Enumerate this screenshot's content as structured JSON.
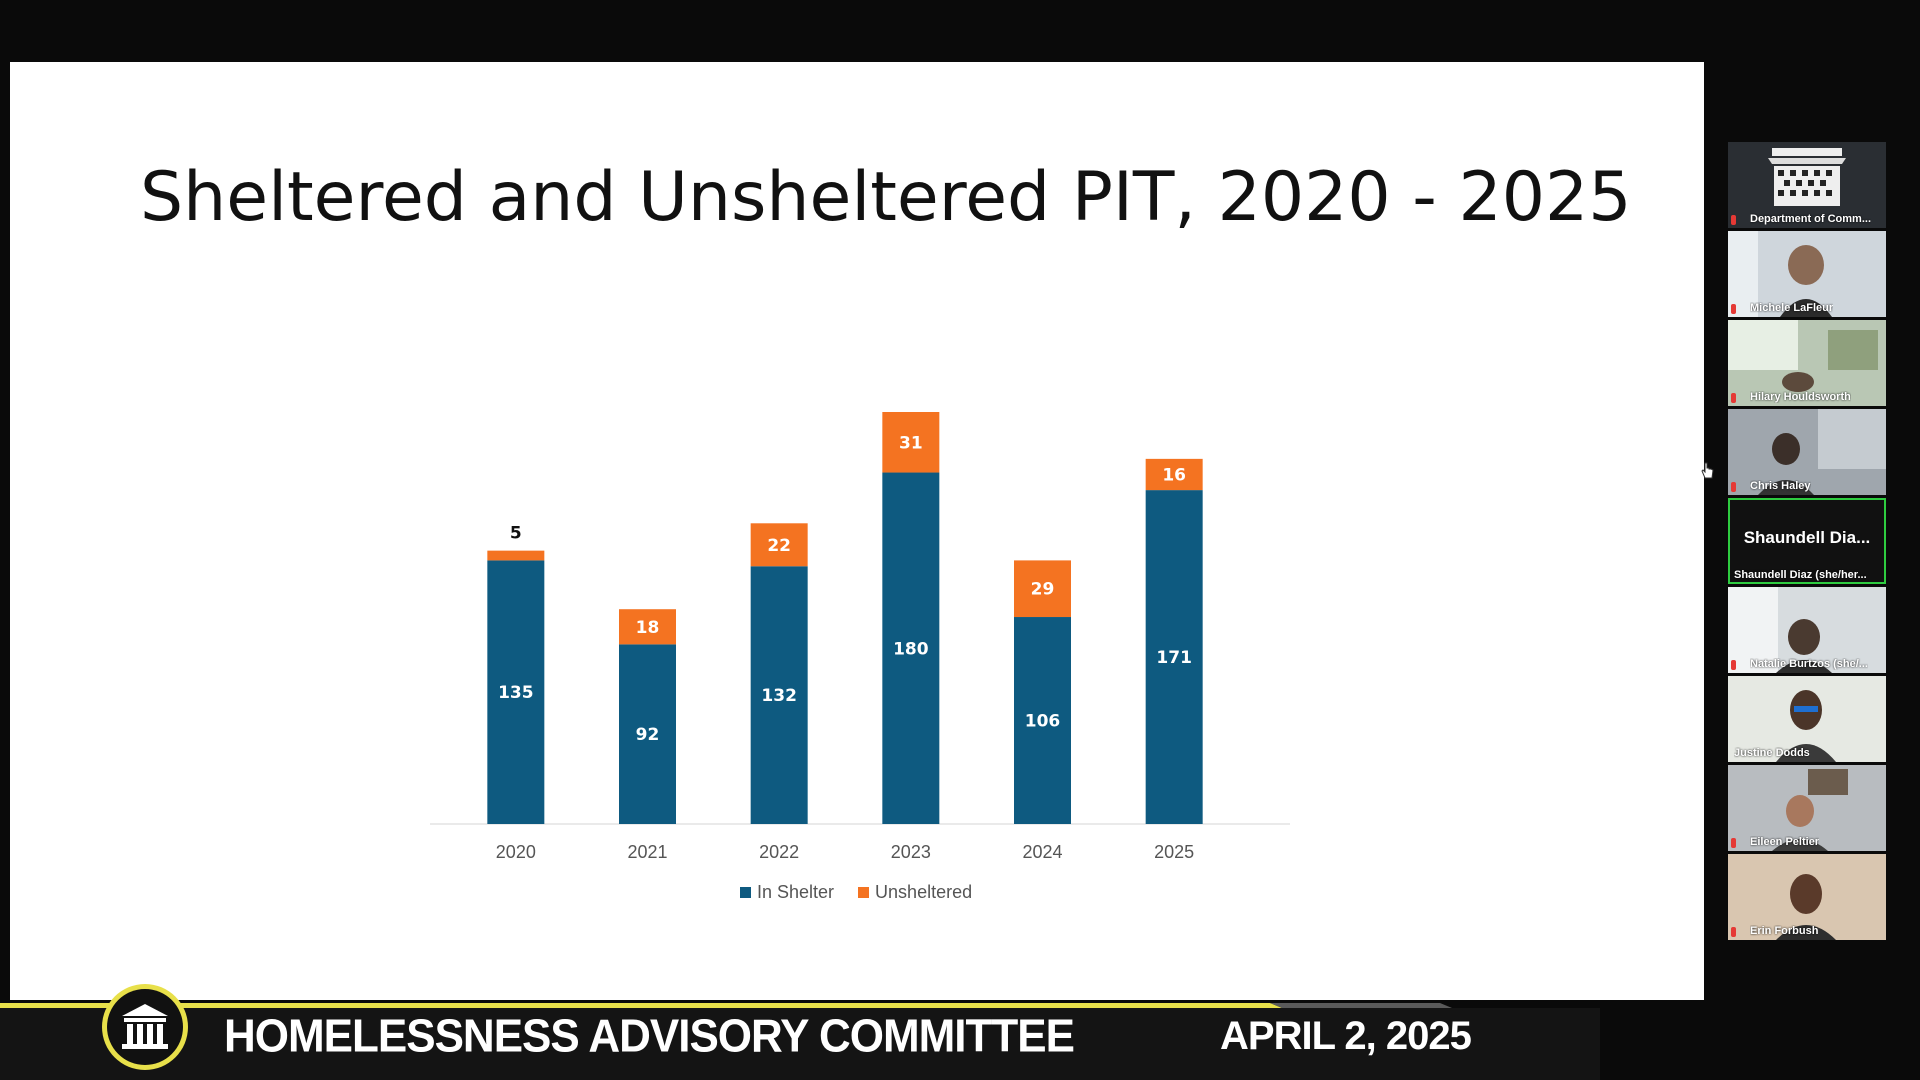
{
  "slide": {
    "title": "Sheltered and Unsheltered PIT, 2020 - 2025"
  },
  "chart_data": {
    "type": "bar",
    "stacked": true,
    "categories": [
      "2020",
      "2021",
      "2022",
      "2023",
      "2024",
      "2025"
    ],
    "series": [
      {
        "name": "In Shelter",
        "values": [
          135,
          92,
          132,
          180,
          106,
          171
        ],
        "color": "#0e5a80"
      },
      {
        "name": "Unsheltered",
        "values": [
          5,
          18,
          22,
          31,
          29,
          16
        ],
        "color": "#f47321"
      }
    ],
    "title": "",
    "xlabel": "",
    "ylabel": "",
    "ylim": [
      0,
      211
    ],
    "grid": false,
    "legend": "bottom"
  },
  "participants": [
    {
      "name": "Department of Comm...",
      "icon": "building-logo-icon"
    },
    {
      "name": "Michele LaFleur"
    },
    {
      "name": "Hilary Houldsworth"
    },
    {
      "name": "Chris Haley"
    },
    {
      "name": "Shaundell Diaz (she/her...",
      "display": "Shaundell Dia...",
      "active": true
    },
    {
      "name": "Natalie Burtzos (she/..."
    },
    {
      "name": "Justine Dodds"
    },
    {
      "name": "Eileen Peltier"
    },
    {
      "name": "Erin Forbush"
    }
  ],
  "banner": {
    "title": "HOMELESSNESS ADVISORY COMMITTEE",
    "date": "APRIL 2, 2025",
    "accent": "#e8e04a"
  }
}
